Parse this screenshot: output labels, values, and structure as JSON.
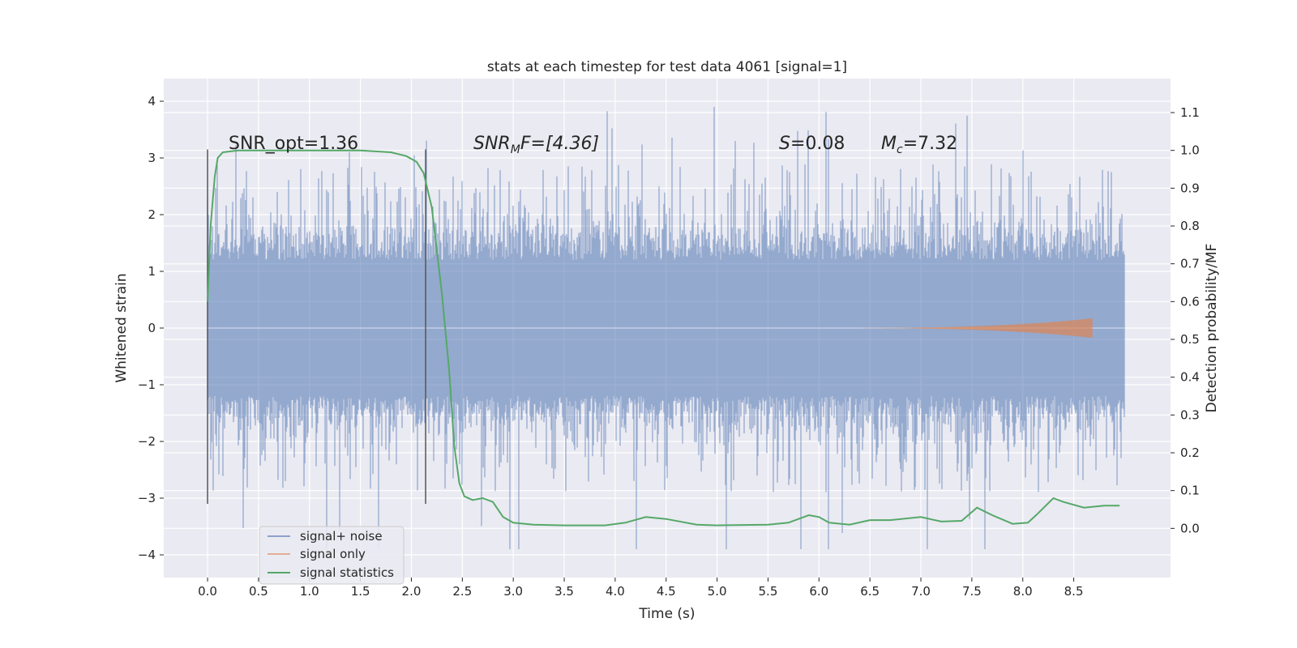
{
  "chart_data": {
    "type": "line",
    "title": "stats at each timestep for test data 4061 [signal=1]",
    "xlabel": "Time (s)",
    "ylabel": "Whitened strain",
    "y2label": "Detection probability/MF",
    "xlim": [
      -0.43,
      9.45
    ],
    "ylim": [
      -4.4,
      4.4
    ],
    "y2lim": [
      -0.13,
      1.19
    ],
    "xticks": [
      0.0,
      0.5,
      1.0,
      1.5,
      2.0,
      2.5,
      3.0,
      3.5,
      4.0,
      4.5,
      5.0,
      5.5,
      6.0,
      6.5,
      7.0,
      7.5,
      8.0,
      8.5
    ],
    "xtick_labels": [
      "0.0",
      "0.5",
      "1.0",
      "1.5",
      "2.0",
      "2.5",
      "3.0",
      "3.5",
      "4.0",
      "4.5",
      "5.0",
      "5.5",
      "6.0",
      "6.5",
      "7.0",
      "7.5",
      "8.0",
      "8.5"
    ],
    "yticks": [
      -4,
      -3,
      -2,
      -1,
      0,
      1,
      2,
      3,
      4
    ],
    "ytick_labels": [
      "−4",
      "−3",
      "−2",
      "−1",
      "0",
      "1",
      "2",
      "3",
      "4"
    ],
    "y2ticks": [
      0.0,
      0.1,
      0.2,
      0.3,
      0.4,
      0.5,
      0.6,
      0.7,
      0.8,
      0.9,
      1.0,
      1.1
    ],
    "y2tick_labels": [
      "0.0",
      "0.1",
      "0.2",
      "0.3",
      "0.4",
      "0.5",
      "0.6",
      "0.7",
      "0.8",
      "0.9",
      "1.0",
      "1.1"
    ],
    "annotations": {
      "snr_opt": "SNR_opt=1.36",
      "snr_mf_base": "SNR",
      "snr_mf_sub": "M",
      "snr_mf_tail": "F=[4.36]",
      "s_label": "S",
      "s_value": "=0.08",
      "mc_base": "M",
      "mc_sub": "c",
      "mc_value": "=7.32"
    },
    "vertical_lines_x": [
      0.0,
      2.14
    ],
    "vertical_lines_range": [
      -3.1,
      3.15
    ],
    "noise_range_x": [
      0.0,
      9.0
    ],
    "noise_envelope": {
      "typical": 2.0,
      "peak": 4.0,
      "min": -3.9
    },
    "signal_only": {
      "start_x": 6.0,
      "end_x": 8.68,
      "max_amplitude": 0.17
    },
    "series": [
      {
        "name": "signal+ noise",
        "color": "#4c72b0",
        "axis": "left"
      },
      {
        "name": "signal only",
        "color": "#dd8452",
        "axis": "left"
      },
      {
        "name": "signal statistics",
        "color": "#55a868",
        "axis": "right",
        "x": [
          0.0,
          0.03,
          0.07,
          0.1,
          0.15,
          0.3,
          0.6,
          1.0,
          1.5,
          1.8,
          1.95,
          2.05,
          2.12,
          2.2,
          2.3,
          2.37,
          2.42,
          2.47,
          2.52,
          2.6,
          2.7,
          2.8,
          2.9,
          3.0,
          3.2,
          3.5,
          3.9,
          4.1,
          4.3,
          4.5,
          4.8,
          5.0,
          5.5,
          5.7,
          5.9,
          6.0,
          6.1,
          6.3,
          6.5,
          6.7,
          7.0,
          7.2,
          7.4,
          7.55,
          7.7,
          7.9,
          8.05,
          8.15,
          8.3,
          8.4,
          8.6,
          8.8,
          8.95
        ],
        "y": [
          0.6,
          0.8,
          0.93,
          0.98,
          0.995,
          1.0,
          1.0,
          1.0,
          1.0,
          0.995,
          0.985,
          0.97,
          0.94,
          0.85,
          0.62,
          0.42,
          0.22,
          0.12,
          0.085,
          0.075,
          0.08,
          0.07,
          0.03,
          0.015,
          0.01,
          0.008,
          0.008,
          0.015,
          0.03,
          0.025,
          0.01,
          0.008,
          0.01,
          0.015,
          0.035,
          0.03,
          0.015,
          0.01,
          0.022,
          0.022,
          0.03,
          0.018,
          0.02,
          0.055,
          0.035,
          0.012,
          0.015,
          0.04,
          0.08,
          0.07,
          0.055,
          0.06,
          0.06
        ]
      }
    ],
    "legend_position": "lower-left"
  }
}
